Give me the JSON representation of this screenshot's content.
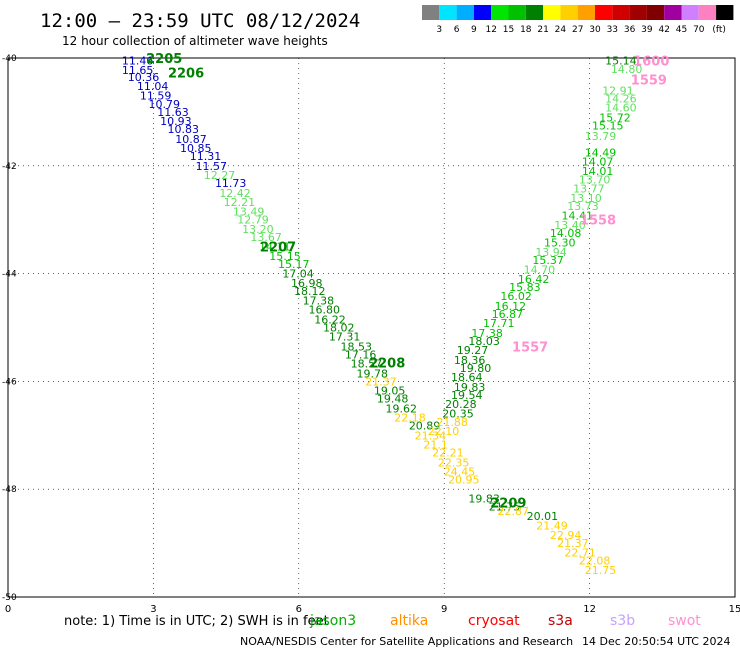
{
  "title": "12:00 — 23:59 UTC 08/12/2024",
  "subtitle": "12 hour collection of altimeter wave heights",
  "color_scale": {
    "ticks": [
      "3",
      "6",
      "9",
      "12",
      "15",
      "18",
      "21",
      "24",
      "27",
      "30",
      "33",
      "36",
      "39",
      "42",
      "45",
      "70"
    ],
    "unit": "(ft)",
    "colors": [
      "#808080",
      "#00e5ff",
      "#00aeff",
      "#0000ff",
      "#00e600",
      "#00c000",
      "#008000",
      "#ffff00",
      "#ffd000",
      "#ffa000",
      "#ff0000",
      "#d00000",
      "#a00000",
      "#800000",
      "#a000a0",
      "#d080ff",
      "#ff80c0",
      "#000000"
    ]
  },
  "note": "note: 1) Time is in UTC; 2) SWH is in feet",
  "satellites": [
    {
      "name": "jason3",
      "color": "#00b000"
    },
    {
      "name": "altika",
      "color": "#ff9000"
    },
    {
      "name": "cryosat",
      "color": "#ff0000"
    },
    {
      "name": "s3a",
      "color": "#c00000"
    },
    {
      "name": "s3b",
      "color": "#c8a0ff"
    },
    {
      "name": "swot",
      "color": "#ff90d0"
    }
  ],
  "footer_left": "NOAA/NESDIS Center for Satellite Applications and Research",
  "footer_right": "14 Dec 20:50:54 UTC 2024",
  "chart_data": {
    "type": "scatter",
    "x_ticks": [
      "0",
      "3",
      "6",
      "9",
      "12",
      "15"
    ],
    "y_ticks": [
      "-40",
      "-42",
      "-44",
      "-46",
      "-48",
      "-50"
    ],
    "xlim": [
      0,
      15
    ],
    "ylim": [
      -50,
      -40
    ],
    "grid": true,
    "series": [
      {
        "values": [
          {
            "x": 2.35,
            "y": -40.05,
            "v": "11.46",
            "c": "#0000c0"
          },
          {
            "x": 2.35,
            "y": -40.22,
            "v": "11.65",
            "c": "#0000c0"
          },
          {
            "x": 2.47,
            "y": -40.35,
            "v": "10.36",
            "c": "#0000c0"
          },
          {
            "x": 2.66,
            "y": -40.52,
            "v": "11.04",
            "c": "#0000c0"
          },
          {
            "x": 2.72,
            "y": -40.7,
            "v": "11.59",
            "c": "#0000c0"
          },
          {
            "x": 2.9,
            "y": -40.85,
            "v": "10.79",
            "c": "#0000c0"
          },
          {
            "x": 3.08,
            "y": -41.0,
            "v": "11.63",
            "c": "#0000c0"
          },
          {
            "x": 3.14,
            "y": -41.17,
            "v": "10.93",
            "c": "#0000c0"
          },
          {
            "x": 3.29,
            "y": -41.32,
            "v": "10.83",
            "c": "#0000c0"
          },
          {
            "x": 3.45,
            "y": -41.5,
            "v": "10.87",
            "c": "#0000c0"
          },
          {
            "x": 3.55,
            "y": -41.67,
            "v": "10.85",
            "c": "#0000c0"
          },
          {
            "x": 3.75,
            "y": -41.82,
            "v": "11.31",
            "c": "#0000c0"
          },
          {
            "x": 3.87,
            "y": -42.0,
            "v": "11.57",
            "c": "#0000c0"
          },
          {
            "x": 4.04,
            "y": -42.17,
            "v": "12.27",
            "c": "#60e060"
          },
          {
            "x": 4.27,
            "y": -42.32,
            "v": "11.73",
            "c": "#0000c0"
          },
          {
            "x": 4.36,
            "y": -42.5,
            "v": "12.42",
            "c": "#60e060"
          },
          {
            "x": 4.45,
            "y": -42.67,
            "v": "12.21",
            "c": "#60e060"
          },
          {
            "x": 4.64,
            "y": -42.85,
            "v": "13.49",
            "c": "#60e060"
          },
          {
            "x": 4.73,
            "y": -43.0,
            "v": "12.79",
            "c": "#60e060"
          },
          {
            "x": 4.83,
            "y": -43.17,
            "v": "13.20",
            "c": "#60e060"
          },
          {
            "x": 5.0,
            "y": -43.32,
            "v": "13.67",
            "c": "#60e060"
          },
          {
            "x": 5.18,
            "y": -43.5,
            "v": "14.11",
            "c": "#00c000"
          },
          {
            "x": 5.39,
            "y": -43.67,
            "v": "15.15",
            "c": "#00c000"
          },
          {
            "x": 5.57,
            "y": -43.82,
            "v": "15.17",
            "c": "#00c000"
          },
          {
            "x": 5.66,
            "y": -44.0,
            "v": "17.04",
            "c": "#008000"
          },
          {
            "x": 5.84,
            "y": -44.17,
            "v": "16.98",
            "c": "#008000"
          },
          {
            "x": 5.9,
            "y": -44.32,
            "v": "18.12",
            "c": "#008000"
          },
          {
            "x": 6.08,
            "y": -44.5,
            "v": "17.38",
            "c": "#008000"
          },
          {
            "x": 6.2,
            "y": -44.67,
            "v": "16.80",
            "c": "#008000"
          },
          {
            "x": 6.32,
            "y": -44.85,
            "v": "16.22",
            "c": "#008000"
          },
          {
            "x": 6.5,
            "y": -45.0,
            "v": "18.02",
            "c": "#008000"
          },
          {
            "x": 6.62,
            "y": -45.17,
            "v": "17.31",
            "c": "#008000"
          },
          {
            "x": 6.86,
            "y": -45.35,
            "v": "18.53",
            "c": "#008000"
          },
          {
            "x": 6.95,
            "y": -45.5,
            "v": "17.16",
            "c": "#008000"
          },
          {
            "x": 7.07,
            "y": -45.67,
            "v": "18.57",
            "c": "#008000"
          },
          {
            "x": 7.19,
            "y": -45.85,
            "v": "19.78",
            "c": "#008000"
          },
          {
            "x": 7.37,
            "y": -46.0,
            "v": "21.37",
            "c": "#ffd000"
          },
          {
            "x": 7.55,
            "y": -46.17,
            "v": "19.05",
            "c": "#008000"
          },
          {
            "x": 7.61,
            "y": -46.32,
            "v": "19.48",
            "c": "#008000"
          },
          {
            "x": 7.79,
            "y": -46.5,
            "v": "19.62",
            "c": "#008000"
          },
          {
            "x": 7.97,
            "y": -46.67,
            "v": "22.18",
            "c": "#ffd000"
          },
          {
            "x": 8.27,
            "y": -46.82,
            "v": "20.89",
            "c": "#008000"
          },
          {
            "x": 8.39,
            "y": -47.0,
            "v": "21.34",
            "c": "#ffd000"
          },
          {
            "x": 8.57,
            "y": -47.17,
            "v": "21.1",
            "c": "#ffd000"
          },
          {
            "x": 8.75,
            "y": -47.32,
            "v": "22.21",
            "c": "#ffd000"
          },
          {
            "x": 8.87,
            "y": -47.5,
            "v": "22.35",
            "c": "#ffd000"
          },
          {
            "x": 8.99,
            "y": -47.67,
            "v": "24.45",
            "c": "#ffd000"
          },
          {
            "x": 9.08,
            "y": -47.82,
            "v": "20.95",
            "c": "#ffd000"
          },
          {
            "x": 9.5,
            "y": -48.17,
            "v": "19.83",
            "c": "#008000"
          },
          {
            "x": 9.92,
            "y": -48.32,
            "v": "21.75",
            "c": "#008000"
          },
          {
            "x": 10.1,
            "y": -48.4,
            "v": "22.87",
            "c": "#ffd000"
          },
          {
            "x": 10.7,
            "y": -48.5,
            "v": "20.01",
            "c": "#008000"
          },
          {
            "x": 10.9,
            "y": -48.67,
            "v": "21.49",
            "c": "#ffd000"
          },
          {
            "x": 11.18,
            "y": -48.85,
            "v": "22.94",
            "c": "#ffd000"
          },
          {
            "x": 11.33,
            "y": -49.0,
            "v": "21.37",
            "c": "#ffd000"
          },
          {
            "x": 11.48,
            "y": -49.17,
            "v": "22.71",
            "c": "#ffd000"
          },
          {
            "x": 11.78,
            "y": -49.32,
            "v": "22.08",
            "c": "#ffd000"
          },
          {
            "x": 11.9,
            "y": -49.5,
            "v": "21.75",
            "c": "#ffd000"
          },
          {
            "x": 12.32,
            "y": -40.05,
            "v": "15.14",
            "c": "#008000"
          },
          {
            "x": 12.44,
            "y": -40.2,
            "v": "14.80",
            "c": "#60e060"
          },
          {
            "x": 12.26,
            "y": -40.6,
            "v": "12.91",
            "c": "#60e060"
          },
          {
            "x": 12.32,
            "y": -40.75,
            "v": "14.26",
            "c": "#60e060"
          },
          {
            "x": 12.32,
            "y": -40.92,
            "v": "14.60",
            "c": "#60e060"
          },
          {
            "x": 12.2,
            "y": -41.1,
            "v": "15.72",
            "c": "#00c000"
          },
          {
            "x": 12.05,
            "y": -41.25,
            "v": "15.15",
            "c": "#00c000"
          },
          {
            "x": 11.9,
            "y": -41.45,
            "v": "13.79",
            "c": "#60e060"
          },
          {
            "x": 11.9,
            "y": -41.75,
            "v": "14.49",
            "c": "#00c000"
          },
          {
            "x": 11.84,
            "y": -41.92,
            "v": "14.07",
            "c": "#00c000"
          },
          {
            "x": 11.84,
            "y": -42.1,
            "v": "14.01",
            "c": "#00c000"
          },
          {
            "x": 11.78,
            "y": -42.25,
            "v": "13.70",
            "c": "#60e060"
          },
          {
            "x": 11.66,
            "y": -42.42,
            "v": "13.77",
            "c": "#60e060"
          },
          {
            "x": 11.6,
            "y": -42.6,
            "v": "13.10",
            "c": "#60e060"
          },
          {
            "x": 11.54,
            "y": -42.75,
            "v": "13.73",
            "c": "#60e060"
          },
          {
            "x": 11.42,
            "y": -42.92,
            "v": "14.41",
            "c": "#00c000"
          },
          {
            "x": 11.27,
            "y": -43.1,
            "v": "13.40",
            "c": "#60e060"
          },
          {
            "x": 11.18,
            "y": -43.25,
            "v": "14.08",
            "c": "#00c000"
          },
          {
            "x": 11.06,
            "y": -43.42,
            "v": "15.30",
            "c": "#00c000"
          },
          {
            "x": 10.88,
            "y": -43.6,
            "v": "13.94",
            "c": "#60e060"
          },
          {
            "x": 10.82,
            "y": -43.75,
            "v": "15.37",
            "c": "#00c000"
          },
          {
            "x": 10.64,
            "y": -43.92,
            "v": "14.70",
            "c": "#60e060"
          },
          {
            "x": 10.52,
            "y": -44.1,
            "v": "16.42",
            "c": "#00c000"
          },
          {
            "x": 10.34,
            "y": -44.25,
            "v": "15.83",
            "c": "#00c000"
          },
          {
            "x": 10.16,
            "y": -44.42,
            "v": "16.02",
            "c": "#00c000"
          },
          {
            "x": 10.04,
            "y": -44.6,
            "v": "16.12",
            "c": "#00c000"
          },
          {
            "x": 9.98,
            "y": -44.75,
            "v": "16.87",
            "c": "#00c000"
          },
          {
            "x": 9.8,
            "y": -44.92,
            "v": "17.71",
            "c": "#00c000"
          },
          {
            "x": 9.56,
            "y": -45.1,
            "v": "17.38",
            "c": "#00c000"
          },
          {
            "x": 9.5,
            "y": -45.25,
            "v": "18.03",
            "c": "#008000"
          },
          {
            "x": 9.26,
            "y": -45.42,
            "v": "19.27",
            "c": "#008000"
          },
          {
            "x": 9.2,
            "y": -45.6,
            "v": "18.36",
            "c": "#008000"
          },
          {
            "x": 9.32,
            "y": -45.75,
            "v": "19.80",
            "c": "#008000"
          },
          {
            "x": 9.14,
            "y": -45.92,
            "v": "18.64",
            "c": "#008000"
          },
          {
            "x": 9.2,
            "y": -46.1,
            "v": "19.83",
            "c": "#008000"
          },
          {
            "x": 9.14,
            "y": -46.25,
            "v": "19.54",
            "c": "#008000"
          },
          {
            "x": 9.02,
            "y": -46.42,
            "v": "20.28",
            "c": "#008000"
          },
          {
            "x": 8.96,
            "y": -46.6,
            "v": "20.35",
            "c": "#008000"
          },
          {
            "x": 8.84,
            "y": -46.75,
            "v": "21.88",
            "c": "#ffd000"
          },
          {
            "x": 8.66,
            "y": -46.92,
            "v": "22.10",
            "c": "#ffd000"
          }
        ]
      }
    ],
    "annotations": [
      {
        "x": 2.85,
        "y": -40.0,
        "text": "2205",
        "c": "#008000"
      },
      {
        "x": 3.3,
        "y": -40.27,
        "text": "2206",
        "c": "#008000"
      },
      {
        "x": 5.2,
        "y": -43.5,
        "text": "2207",
        "c": "#008000"
      },
      {
        "x": 7.45,
        "y": -45.65,
        "text": "2208",
        "c": "#008000"
      },
      {
        "x": 9.95,
        "y": -48.25,
        "text": "2209",
        "c": "#008000"
      },
      {
        "x": 12.9,
        "y": -40.05,
        "text": "1600",
        "c": "#ff90d0"
      },
      {
        "x": 12.85,
        "y": -40.4,
        "text": "1559",
        "c": "#ff90d0"
      },
      {
        "x": 11.8,
        "y": -43.0,
        "text": "1558",
        "c": "#ff90d0"
      },
      {
        "x": 10.4,
        "y": -45.35,
        "text": "1557",
        "c": "#ff90d0"
      }
    ]
  }
}
